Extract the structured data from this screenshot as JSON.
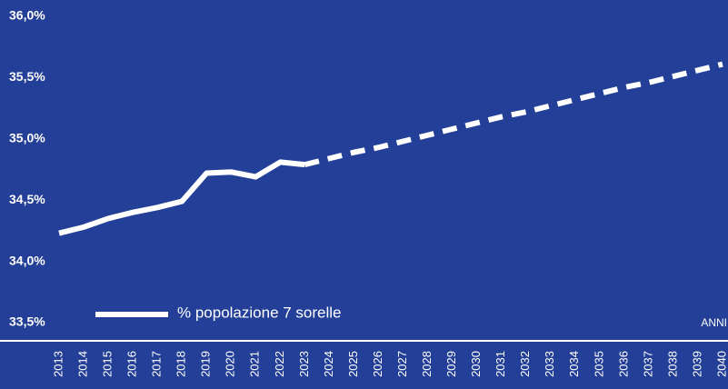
{
  "chart_data": {
    "type": "line",
    "x_label": "ANNI",
    "x": [
      2013,
      2014,
      2015,
      2016,
      2017,
      2018,
      2019,
      2020,
      2021,
      2022,
      2023,
      2024,
      2025,
      2026,
      2027,
      2028,
      2029,
      2030,
      2031,
      2032,
      2033,
      2034,
      2035,
      2036,
      2037,
      2038,
      2039,
      2040
    ],
    "xlim": [
      2013,
      2040
    ],
    "series": [
      {
        "name": "% popolazione 7 sorelle",
        "color": "#ffffff",
        "style": "solid",
        "values": [
          34.23,
          34.28,
          34.35,
          34.4,
          34.44,
          34.49,
          34.72,
          34.73,
          34.69,
          34.81,
          34.79,
          null,
          null,
          null,
          null,
          null,
          null,
          null,
          null,
          null,
          null,
          null,
          null,
          null,
          null,
          null,
          null,
          null
        ]
      },
      {
        "color": "#ffffff",
        "style": "dashed",
        "values": [
          null,
          null,
          null,
          null,
          null,
          null,
          null,
          null,
          null,
          null,
          34.79,
          34.84,
          34.89,
          34.93,
          34.98,
          35.03,
          35.08,
          35.13,
          35.18,
          35.22,
          35.27,
          35.32,
          35.37,
          35.42,
          35.46,
          35.51,
          35.56,
          35.61
        ]
      }
    ],
    "ylim": [
      33.5,
      36.0
    ],
    "yticks": [
      {
        "value": 36.0,
        "label": "36,0%"
      },
      {
        "value": 35.5,
        "label": "35,5%"
      },
      {
        "value": 35.0,
        "label": "35,0%"
      },
      {
        "value": 34.5,
        "label": "34,5%"
      },
      {
        "value": 34.0,
        "label": "34,0%"
      },
      {
        "value": 33.5,
        "label": "33,5%"
      }
    ]
  }
}
